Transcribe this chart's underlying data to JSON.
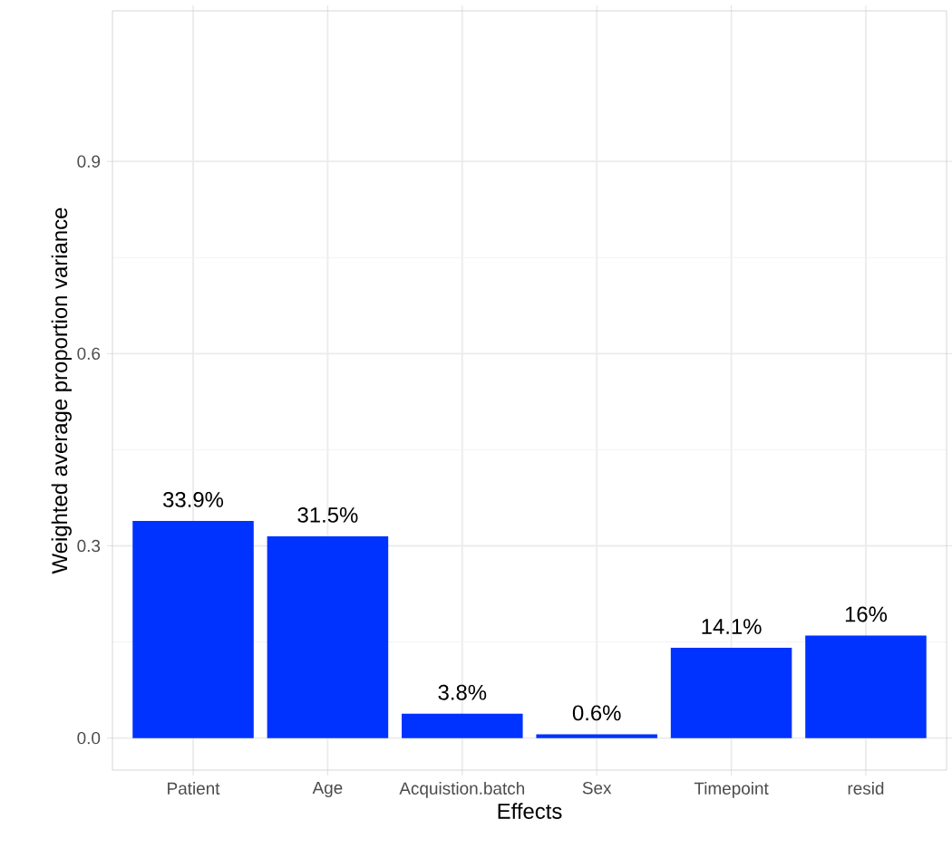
{
  "chart_data": {
    "type": "bar",
    "xlabel": "Effects",
    "ylabel": "Weighted average proportion variance",
    "categories": [
      "Patient",
      "Age",
      "Acquistion.batch",
      "Sex",
      "Timepoint",
      "resid"
    ],
    "values": [
      0.339,
      0.315,
      0.038,
      0.006,
      0.141,
      0.16
    ],
    "value_labels": [
      "33.9%",
      "31.5%",
      "3.8%",
      "0.6%",
      "14.1%",
      "16%"
    ],
    "color": "#0033ff",
    "ylim": [
      -0.05,
      1.135
    ],
    "yticks": [
      {
        "value": 0,
        "label": "0.0"
      },
      0.3,
      0.6,
      0.9
    ],
    "grid": true
  }
}
